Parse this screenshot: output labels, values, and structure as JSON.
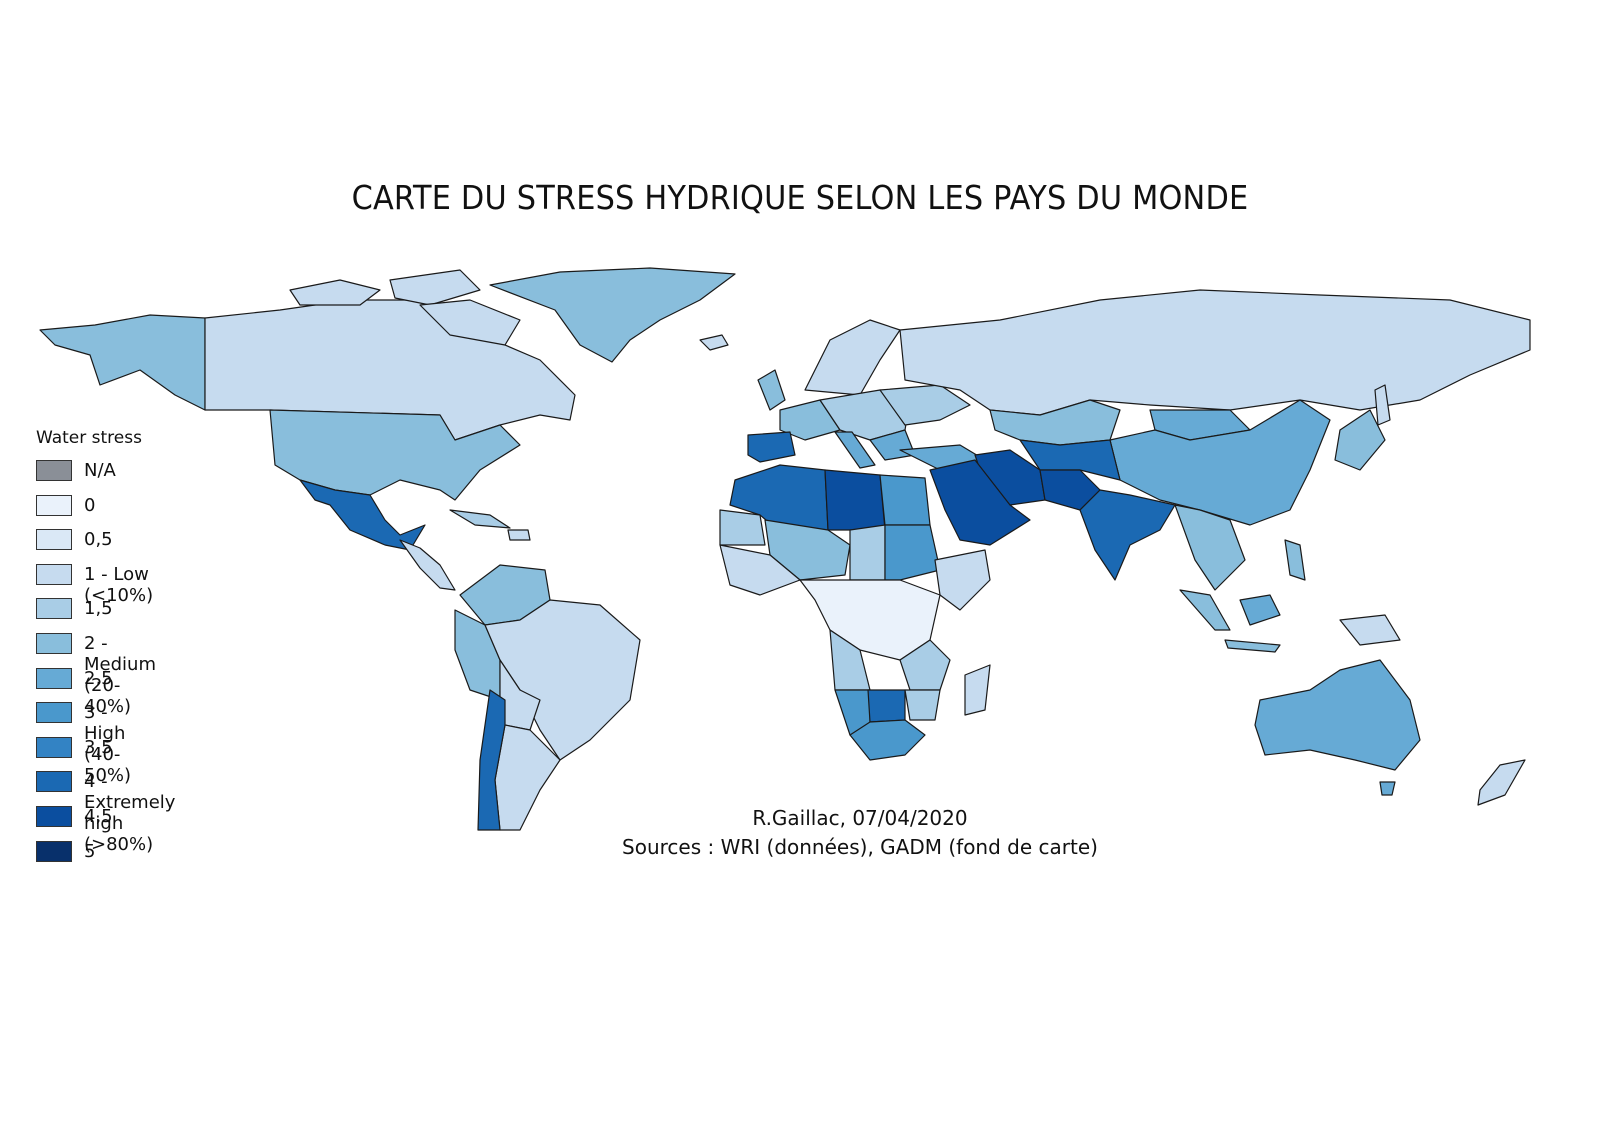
{
  "title": "CARTE DU STRESS HYDRIQUE SELON LES PAYS DU MONDE",
  "legend": {
    "title": "Water stress",
    "items": [
      {
        "label": "N/A",
        "color": "#8a8f97"
      },
      {
        "label": "0",
        "color": "#eaf2fb"
      },
      {
        "label": "0,5",
        "color": "#dae8f6"
      },
      {
        "label": "1 - Low (<10%)",
        "color": "#c6dbef"
      },
      {
        "label": "1,5",
        "color": "#a9cde6"
      },
      {
        "label": "2 - Medium (20-40%)",
        "color": "#89bedc"
      },
      {
        "label": "2,5",
        "color": "#66aad5"
      },
      {
        "label": "3 - High (40-50%)",
        "color": "#4a98cc"
      },
      {
        "label": "3,5",
        "color": "#3383c4"
      },
      {
        "label": "4 - Extremely high (>80%)",
        "color": "#1b69b3"
      },
      {
        "label": "4,5",
        "color": "#0b4e9f"
      },
      {
        "label": "5",
        "color": "#08306b"
      }
    ]
  },
  "credits": {
    "author": "R.Gaillac, 07/04/2020",
    "sources": "Sources : WRI (données), GADM (fond de carte)"
  }
}
